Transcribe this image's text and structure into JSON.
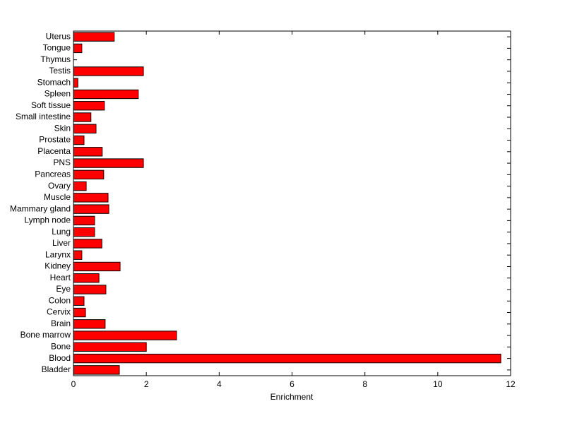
{
  "chart_data": {
    "type": "barh",
    "xlabel": "Enrichment",
    "categories": [
      "Bladder",
      "Blood",
      "Bone",
      "Bone marrow",
      "Brain",
      "Cervix",
      "Colon",
      "Eye",
      "Heart",
      "Kidney",
      "Larynx",
      "Liver",
      "Lung",
      "Lymph node",
      "Mammary gland",
      "Muscle",
      "Ovary",
      "Pancreas",
      "PNS",
      "Placenta",
      "Prostate",
      "Skin",
      "Small intestine",
      "Soft tissue",
      "Spleen",
      "Stomach",
      "Testis",
      "Thymus",
      "Tongue",
      "Uterus"
    ],
    "values": [
      1.26,
      11.73,
      2.0,
      2.83,
      0.87,
      0.33,
      0.29,
      0.89,
      0.7,
      1.28,
      0.23,
      0.78,
      0.58,
      0.58,
      0.97,
      0.95,
      0.35,
      0.83,
      1.92,
      0.79,
      0.29,
      0.62,
      0.48,
      0.85,
      1.78,
      0.12,
      1.92,
      0,
      0.23,
      1.12
    ],
    "color": "#ff0000",
    "xlim": [
      0,
      12
    ],
    "xticks": [
      0,
      2,
      4,
      6,
      8,
      10,
      12
    ]
  }
}
